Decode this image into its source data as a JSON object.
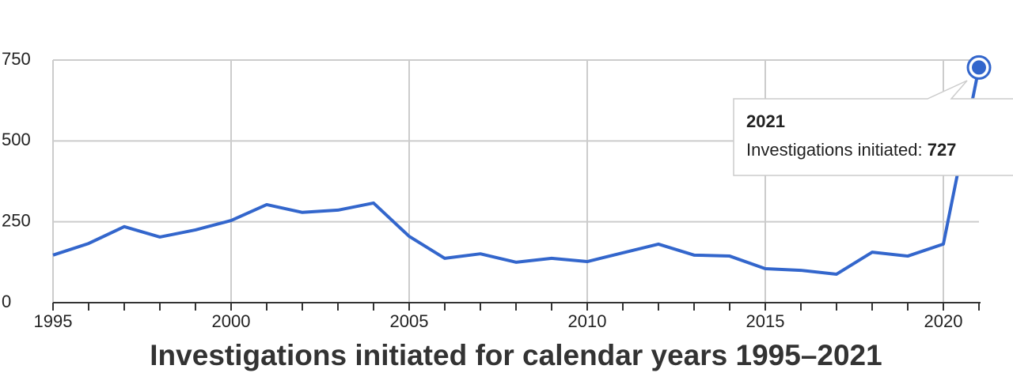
{
  "chart_data": {
    "type": "line",
    "title": "Investigations initiated for calendar years 1995–2021",
    "x": [
      1995,
      1996,
      1997,
      1998,
      1999,
      2000,
      2001,
      2002,
      2003,
      2004,
      2005,
      2006,
      2007,
      2008,
      2009,
      2010,
      2011,
      2012,
      2013,
      2014,
      2015,
      2016,
      2017,
      2018,
      2019,
      2020,
      2021
    ],
    "values": [
      147,
      183,
      235,
      203,
      225,
      254,
      303,
      279,
      286,
      308,
      205,
      137,
      151,
      125,
      137,
      127,
      154,
      181,
      147,
      144,
      105,
      100,
      88,
      156,
      144,
      181,
      727
    ],
    "color": "#3366cc",
    "xlim": [
      1995,
      2021
    ],
    "xticks": [
      1995,
      2000,
      2005,
      2010,
      2015,
      2020
    ],
    "ylim": [
      0,
      750
    ],
    "yticks": [
      0,
      250,
      500,
      750
    ],
    "grid": true,
    "tooltip_label": "Investigations initiated:"
  }
}
